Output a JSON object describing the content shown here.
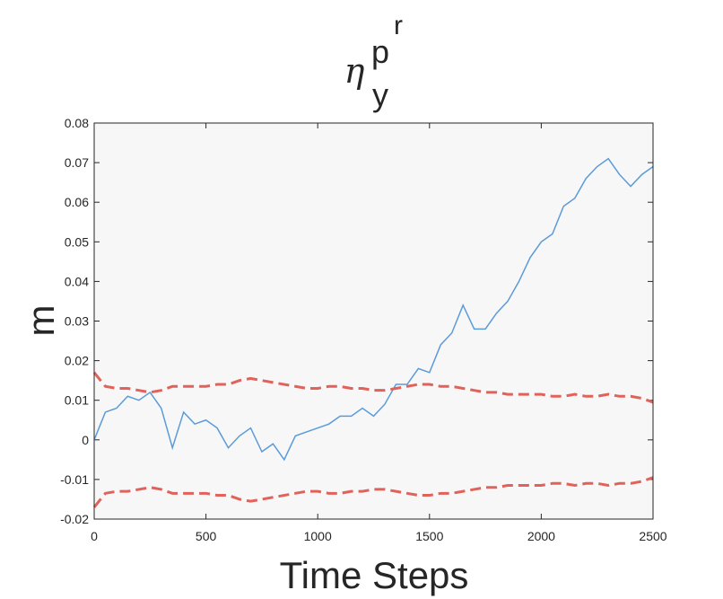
{
  "chart_data": {
    "type": "line",
    "title": {
      "base": "η",
      "sub": "y",
      "sup": "p",
      "supsup": "r"
    },
    "xlabel": "Time Steps",
    "ylabel": "m",
    "x": [
      0,
      50,
      100,
      150,
      200,
      250,
      300,
      350,
      400,
      450,
      500,
      550,
      600,
      650,
      700,
      750,
      800,
      850,
      900,
      950,
      1000,
      1050,
      1100,
      1150,
      1200,
      1250,
      1300,
      1350,
      1400,
      1450,
      1500,
      1550,
      1600,
      1650,
      1700,
      1750,
      1800,
      1850,
      1900,
      1950,
      2000,
      2050,
      2100,
      2150,
      2200,
      2250,
      2300,
      2350,
      2400,
      2450,
      2500
    ],
    "series": [
      {
        "color": "#5b9bd9",
        "dash": false,
        "values": [
          0,
          0.007,
          0.008,
          0.011,
          0.01,
          0.012,
          0.008,
          -0.002,
          0.007,
          0.004,
          0.005,
          0.003,
          -0.002,
          0.001,
          0.003,
          -0.003,
          -0.001,
          -0.005,
          0.001,
          0.002,
          0.003,
          0.004,
          0.006,
          0.006,
          0.008,
          0.006,
          0.009,
          0.014,
          0.014,
          0.018,
          0.017,
          0.024,
          0.027,
          0.034,
          0.028,
          0.028,
          0.032,
          0.035,
          0.04,
          0.046,
          0.05,
          0.052,
          0.059,
          0.061,
          0.066,
          0.069,
          0.071,
          0.067,
          0.064,
          0.067,
          0.069
        ]
      },
      {
        "color": "#e0625a",
        "dash": true,
        "values": [
          0.017,
          0.0135,
          0.013,
          0.013,
          0.0125,
          0.012,
          0.0125,
          0.0135,
          0.0135,
          0.0135,
          0.0135,
          0.014,
          0.014,
          0.015,
          0.0155,
          0.015,
          0.0145,
          0.014,
          0.0135,
          0.013,
          0.013,
          0.0135,
          0.0135,
          0.013,
          0.013,
          0.0125,
          0.0125,
          0.013,
          0.0135,
          0.014,
          0.014,
          0.0135,
          0.0135,
          0.013,
          0.0125,
          0.012,
          0.012,
          0.0115,
          0.0115,
          0.0115,
          0.0115,
          0.011,
          0.011,
          0.0115,
          0.011,
          0.011,
          0.0115,
          0.011,
          0.011,
          0.0105,
          0.0095
        ]
      },
      {
        "color": "#e0625a",
        "dash": true,
        "values": [
          -0.017,
          -0.0135,
          -0.013,
          -0.013,
          -0.0125,
          -0.012,
          -0.0125,
          -0.0135,
          -0.0135,
          -0.0135,
          -0.0135,
          -0.014,
          -0.014,
          -0.015,
          -0.0155,
          -0.015,
          -0.0145,
          -0.014,
          -0.0135,
          -0.013,
          -0.013,
          -0.0135,
          -0.0135,
          -0.013,
          -0.013,
          -0.0125,
          -0.0125,
          -0.013,
          -0.0135,
          -0.014,
          -0.014,
          -0.0135,
          -0.0135,
          -0.013,
          -0.0125,
          -0.012,
          -0.012,
          -0.0115,
          -0.0115,
          -0.0115,
          -0.0115,
          -0.011,
          -0.011,
          -0.0115,
          -0.011,
          -0.011,
          -0.0115,
          -0.011,
          -0.011,
          -0.0105,
          -0.0095
        ]
      }
    ],
    "xlim": [
      0,
      2500
    ],
    "xticks": [
      0,
      500,
      1000,
      1500,
      2000,
      2500
    ],
    "ylim": [
      -0.02,
      0.08
    ],
    "yticks": [
      -0.02,
      -0.01,
      0,
      0.01,
      0.02,
      0.03,
      0.04,
      0.05,
      0.06,
      0.07,
      0.08
    ],
    "background": "#f7f7f7"
  }
}
